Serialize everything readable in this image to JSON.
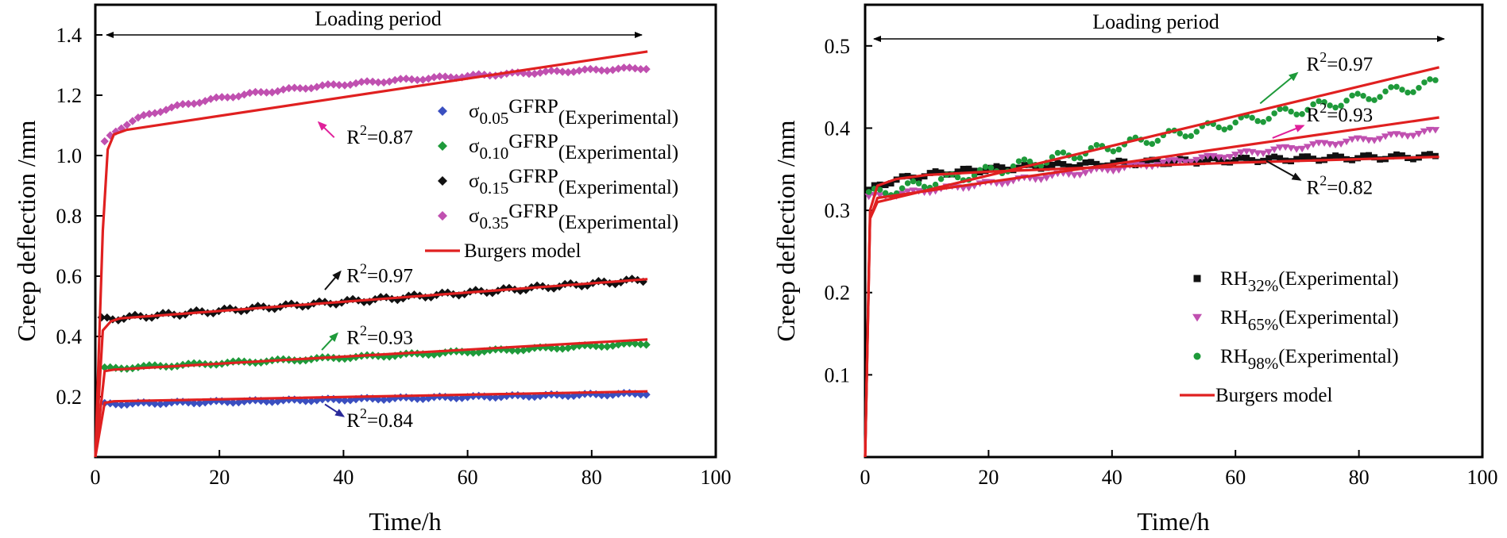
{
  "chart_data": [
    {
      "type": "scatter",
      "title": "",
      "header": "Loading period",
      "xlabel": "Time/h",
      "ylabel": "Creep deflection /mm",
      "xlim": [
        0,
        100
      ],
      "ylim": [
        0,
        1.5
      ],
      "xticks": [
        "0",
        "20",
        "40",
        "60",
        "80",
        "100"
      ],
      "xtick_values": [
        0,
        20,
        40,
        60,
        80,
        100
      ],
      "yticks": [
        "0.2",
        "0.4",
        "0.6",
        "0.8",
        "1.0",
        "1.2",
        "1.4"
      ],
      "ytick_values": [
        0.2,
        0.4,
        0.6,
        0.8,
        1.0,
        1.2,
        1.4
      ],
      "legend": [
        {
          "sym": "σ",
          "sub": "0.05",
          "main": "GFRP",
          "sup": "(Experimental)",
          "color": "#3a4fc0",
          "marker": "diamond"
        },
        {
          "sym": "σ",
          "sub": "0.10",
          "main": "GFRP",
          "sup": "(Experimental)",
          "color": "#1e9a3a",
          "marker": "diamond"
        },
        {
          "sym": "σ",
          "sub": "0.15",
          "main": "GFRP",
          "sup": "(Experimental)",
          "color": "#111111",
          "marker": "diamond"
        },
        {
          "sym": "σ",
          "sub": "0.35",
          "main": "GFRP",
          "sup": "(Experimental)",
          "color": "#c050b0",
          "marker": "diamond"
        },
        {
          "label": "Burgers model",
          "color": "#e02020",
          "marker": "line"
        }
      ],
      "series": [
        {
          "name": "σ0.05GFRP(Experimental)",
          "color": "#3a4fc0",
          "marker": "diamond",
          "y0": 0.175,
          "k": 0.0004,
          "amp": 0.0035,
          "period": 6,
          "tstart": 1.5,
          "tend": 89
        },
        {
          "name": "σ0.10GFRP(Experimental)",
          "color": "#1e9a3a",
          "marker": "diamond",
          "y0": 0.292,
          "k": 0.00095,
          "amp": 0.004,
          "period": 7,
          "tstart": 1.5,
          "tend": 89
        },
        {
          "name": "σ0.15GFRP(Experimental)",
          "color": "#111111",
          "marker": "diamond",
          "y0": 0.455,
          "k": 0.0015,
          "amp": 0.007,
          "period": 5,
          "tstart": 1.0,
          "tend": 89
        },
        {
          "name": "σ0.35GFRP(Experimental)",
          "color": "#c050b0",
          "marker": "diamond",
          "A": 0.98,
          "B": 0.069,
          "amp": 0.004,
          "period": 6,
          "tstart": 1.5,
          "tend": 89
        }
      ],
      "model_lines": [
        {
          "name": "Burgers model (σ0.05)",
          "color": "#e02020",
          "t": [
            0,
            1.5,
            3,
            89
          ],
          "y": [
            0,
            0.18,
            0.185,
            0.218
          ]
        },
        {
          "name": "Burgers model (σ0.10)",
          "color": "#e02020",
          "t": [
            0,
            1.5,
            3,
            89
          ],
          "y": [
            0,
            0.285,
            0.29,
            0.39
          ]
        },
        {
          "name": "Burgers model (σ0.15)",
          "color": "#e02020",
          "t": [
            0,
            1.2,
            2.5,
            4,
            89
          ],
          "y": [
            0,
            0.42,
            0.45,
            0.46,
            0.59
          ]
        },
        {
          "name": "Burgers model (σ0.35)",
          "color": "#e02020",
          "t": [
            0,
            1.2,
            2,
            3,
            5,
            89
          ],
          "y": [
            0,
            0.75,
            1.02,
            1.07,
            1.085,
            1.345
          ]
        }
      ],
      "annotations": [
        {
          "text_main": "R",
          "text_sup": "2",
          "text_tail": "=0.87",
          "color": "#e0209a",
          "text_x": 40.5,
          "text_y": 1.04,
          "arrow_from": [
            38.5,
            1.06
          ],
          "arrow_to": [
            36,
            1.11
          ]
        },
        {
          "text_main": "R",
          "text_sup": "2",
          "text_tail": "=0.97",
          "color": "#111111",
          "text_x": 40.5,
          "text_y": 0.58,
          "arrow_from": [
            37,
            0.555
          ],
          "arrow_to": [
            39.5,
            0.615
          ]
        },
        {
          "text_main": "R",
          "text_sup": "2",
          "text_tail": "=0.93",
          "color": "#1e9a3a",
          "text_x": 40.5,
          "text_y": 0.375,
          "arrow_from": [
            36.5,
            0.355
          ],
          "arrow_to": [
            39,
            0.41
          ]
        },
        {
          "text_main": "R",
          "text_sup": "2",
          "text_tail": "=0.84",
          "color": "#2a2a9a",
          "text_x": 40.5,
          "text_y": 0.1,
          "arrow_from": [
            37,
            0.175
          ],
          "arrow_to": [
            40,
            0.135
          ]
        }
      ]
    },
    {
      "type": "scatter",
      "title": "",
      "header": "Loading period",
      "xlabel": "Time/h",
      "ylabel": "Creep deflection /mm",
      "xlim": [
        0,
        100
      ],
      "ylim": [
        0,
        0.55
      ],
      "xticks": [
        "0",
        "20",
        "40",
        "60",
        "80",
        "100"
      ],
      "xtick_values": [
        0,
        20,
        40,
        60,
        80,
        100
      ],
      "yticks": [
        "0.1",
        "0.2",
        "0.3",
        "0.4",
        "0.5"
      ],
      "ytick_values": [
        0.1,
        0.2,
        0.3,
        0.4,
        0.5
      ],
      "legend": [
        {
          "sym": "RH",
          "sub": "32%",
          "sup": "(Experimental)",
          "color": "#111111",
          "marker": "square"
        },
        {
          "sym": "RH",
          "sub": "65%",
          "sup": "(Experimental)",
          "color": "#c050b0",
          "marker": "triangle-down"
        },
        {
          "sym": "RH",
          "sub": "98%",
          "sup": "(Experimental)",
          "color": "#1e9a3a",
          "marker": "circle"
        },
        {
          "label": "Burgers model",
          "color": "#e02020",
          "marker": "line"
        }
      ],
      "series": [
        {
          "name": "RH32%(Experimental)",
          "color": "#111111",
          "marker": "square",
          "A": 0.318,
          "B": 0.0105,
          "amp": 0.003,
          "period": 5,
          "tstart": 0.6,
          "tend": 93
        },
        {
          "name": "RH65%(Experimental)",
          "color": "#c050b0",
          "marker": "triangle-down",
          "y0": 0.315,
          "k": 0.00088,
          "amp": 0.0025,
          "period": 6,
          "tstart": 0.6,
          "tend": 93
        },
        {
          "name": "RH98%(Experimental)",
          "color": "#1e9a3a",
          "marker": "circle",
          "y0": 0.318,
          "k": 0.00148,
          "amp": 0.006,
          "period": 6,
          "tstart": 0.6,
          "tend": 93
        }
      ],
      "model_lines": [
        {
          "name": "Burgers model (RH32%)",
          "color": "#e02020",
          "t": [
            0,
            0.8,
            2,
            5,
            10,
            20,
            40,
            60,
            93
          ],
          "y": [
            0,
            0.3,
            0.33,
            0.338,
            0.343,
            0.347,
            0.353,
            0.358,
            0.365
          ]
        },
        {
          "name": "Burgers model (RH65%)",
          "color": "#e02020",
          "t": [
            0,
            0.8,
            2,
            93
          ],
          "y": [
            0,
            0.29,
            0.315,
            0.413
          ]
        },
        {
          "name": "Burgers model (RH98%)",
          "color": "#e02020",
          "t": [
            0,
            0.8,
            2,
            93
          ],
          "y": [
            0,
            0.29,
            0.31,
            0.474
          ]
        }
      ],
      "annotations": [
        {
          "text_main": "R",
          "text_sup": "2",
          "text_tail": "=0.97",
          "color": "#1e9a3a",
          "text_x": 71.5,
          "text_y": 0.47,
          "arrow_from": [
            64,
            0.43
          ],
          "arrow_to": [
            70,
            0.467
          ]
        },
        {
          "text_main": "R",
          "text_sup": "2",
          "text_tail": "=0.93",
          "color": "#e0209a",
          "text_x": 71.5,
          "text_y": 0.408,
          "arrow_from": [
            66,
            0.388
          ],
          "arrow_to": [
            71,
            0.403
          ]
        },
        {
          "text_main": "R",
          "text_sup": "2",
          "text_tail": "=0.82",
          "color": "#111111",
          "text_x": 71.5,
          "text_y": 0.32,
          "arrow_from": [
            65,
            0.36
          ],
          "arrow_to": [
            70.5,
            0.337
          ]
        }
      ]
    }
  ]
}
